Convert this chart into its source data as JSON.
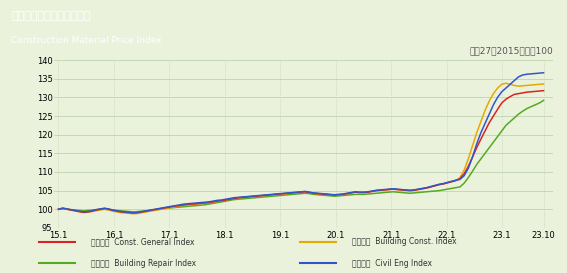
{
  "title_jp": "建設資材物価指数（東京）",
  "title_en": "Construction Material Price Index",
  "subtitle": "平成27（2015）年＝100",
  "bg_outer": "#eaf2dc",
  "bg_title": "#55bb33",
  "bg_plot": "#eaf2dc",
  "ylim": [
    95.0,
    140.0
  ],
  "yticks": [
    95.0,
    100.0,
    105.0,
    110.0,
    115.0,
    120.0,
    125.0,
    130.0,
    135.0,
    140.0
  ],
  "xtick_labels": [
    "15.1",
    "16.1",
    "17.1",
    "18.1",
    "19.1",
    "20.1",
    "21.1",
    "22.1",
    "23.1",
    "23.10"
  ],
  "xtick_positions": [
    0,
    12,
    24,
    36,
    48,
    60,
    72,
    84,
    96,
    105
  ],
  "xlim": [
    -1,
    107
  ],
  "series": {
    "general": {
      "label_jp": "建設総合",
      "label_en": "Const. General Index",
      "color": "#dd2222",
      "zorder": 4,
      "values": [
        100.0,
        100.3,
        100.1,
        99.8,
        99.6,
        99.4,
        99.2,
        99.3,
        99.5,
        99.8,
        100.0,
        100.2,
        100.0,
        99.7,
        99.5,
        99.3,
        99.2,
        99.1,
        99.0,
        99.1,
        99.3,
        99.5,
        99.7,
        99.9,
        100.1,
        100.3,
        100.5,
        100.7,
        100.9,
        101.0,
        101.2,
        101.3,
        101.4,
        101.5,
        101.6,
        101.7,
        101.8,
        102.0,
        102.2,
        102.3,
        102.5,
        102.7,
        102.9,
        103.1,
        103.2,
        103.3,
        103.4,
        103.5,
        103.6,
        103.7,
        103.8,
        103.9,
        104.0,
        104.1,
        104.2,
        104.3,
        104.4,
        104.5,
        104.6,
        104.7,
        104.5,
        104.3,
        104.2,
        104.1,
        104.0,
        103.9,
        103.8,
        103.9,
        104.0,
        104.2,
        104.4,
        104.6,
        104.5,
        104.5,
        104.6,
        104.8,
        105.0,
        105.1,
        105.2,
        105.3,
        105.4,
        105.3,
        105.2,
        105.1,
        105.0,
        105.1,
        105.3,
        105.5,
        105.7,
        106.0,
        106.3,
        106.6,
        106.8,
        107.1,
        107.4,
        107.7,
        108.2,
        109.5,
        111.5,
        114.0,
        116.5,
        118.8,
        121.0,
        123.2,
        125.0,
        126.8,
        128.5,
        129.5,
        130.2,
        130.8,
        131.0,
        131.2,
        131.4,
        131.5,
        131.6,
        131.7,
        131.8
      ]
    },
    "building": {
      "label_jp": "建築部門",
      "label_en": "Building Const. Index",
      "color": "#e8a800",
      "zorder": 3,
      "values": [
        100.0,
        100.2,
        100.0,
        99.8,
        99.6,
        99.3,
        99.1,
        99.2,
        99.4,
        99.6,
        99.8,
        100.0,
        99.8,
        99.5,
        99.3,
        99.1,
        99.0,
        98.9,
        98.8,
        98.9,
        99.1,
        99.3,
        99.5,
        99.7,
        99.9,
        100.1,
        100.3,
        100.5,
        100.7,
        100.9,
        101.1,
        101.2,
        101.3,
        101.4,
        101.5,
        101.6,
        101.7,
        101.9,
        102.1,
        102.3,
        102.5,
        102.7,
        102.9,
        103.1,
        103.2,
        103.3,
        103.4,
        103.5,
        103.6,
        103.7,
        103.8,
        103.9,
        104.0,
        104.1,
        104.2,
        104.3,
        104.4,
        104.5,
        104.6,
        104.7,
        104.5,
        104.3,
        104.2,
        104.1,
        104.0,
        103.9,
        103.8,
        103.9,
        104.0,
        104.2,
        104.4,
        104.6,
        104.5,
        104.5,
        104.6,
        104.8,
        105.0,
        105.1,
        105.2,
        105.3,
        105.4,
        105.3,
        105.2,
        105.1,
        105.0,
        105.1,
        105.3,
        105.5,
        105.7,
        106.0,
        106.3,
        106.6,
        106.8,
        107.1,
        107.4,
        107.7,
        108.5,
        110.5,
        113.5,
        117.0,
        120.5,
        123.5,
        126.5,
        129.0,
        131.0,
        132.5,
        133.5,
        133.8,
        133.5,
        133.2,
        133.0,
        133.1,
        133.2,
        133.3,
        133.4,
        133.5,
        133.6
      ]
    },
    "repair": {
      "label_jp": "建築補修",
      "label_en": "Building Repair Index",
      "color": "#55aa22",
      "zorder": 2,
      "values": [
        100.0,
        100.1,
        100.0,
        99.9,
        99.8,
        99.7,
        99.6,
        99.7,
        99.8,
        99.9,
        100.0,
        100.1,
        100.0,
        99.8,
        99.7,
        99.6,
        99.5,
        99.4,
        99.3,
        99.4,
        99.5,
        99.6,
        99.7,
        99.9,
        100.0,
        100.2,
        100.3,
        100.4,
        100.5,
        100.6,
        100.7,
        100.8,
        100.9,
        101.0,
        101.1,
        101.2,
        101.4,
        101.6,
        101.8,
        102.0,
        102.2,
        102.4,
        102.6,
        102.7,
        102.8,
        102.9,
        103.0,
        103.1,
        103.2,
        103.3,
        103.4,
        103.5,
        103.6,
        103.7,
        103.8,
        103.9,
        104.0,
        104.1,
        104.2,
        104.3,
        104.2,
        104.0,
        103.9,
        103.8,
        103.7,
        103.6,
        103.5,
        103.6,
        103.7,
        103.8,
        103.9,
        104.0,
        104.0,
        104.0,
        104.1,
        104.2,
        104.3,
        104.4,
        104.5,
        104.6,
        104.7,
        104.6,
        104.5,
        104.4,
        104.3,
        104.4,
        104.5,
        104.6,
        104.7,
        104.8,
        104.9,
        105.0,
        105.2,
        105.4,
        105.6,
        105.8,
        106.0,
        107.0,
        108.5,
        110.2,
        112.0,
        113.5,
        115.0,
        116.5,
        118.0,
        119.5,
        121.0,
        122.5,
        123.5,
        124.5,
        125.5,
        126.3,
        127.0,
        127.5,
        128.0,
        128.5,
        129.2
      ]
    },
    "civil": {
      "label_jp": "土木部門",
      "label_en": "Civil Eng Index",
      "color": "#3355cc",
      "zorder": 5,
      "values": [
        100.0,
        100.3,
        100.1,
        99.9,
        99.7,
        99.5,
        99.3,
        99.4,
        99.6,
        99.9,
        100.1,
        100.3,
        100.1,
        99.8,
        99.6,
        99.4,
        99.3,
        99.2,
        99.1,
        99.2,
        99.4,
        99.6,
        99.8,
        100.0,
        100.2,
        100.4,
        100.6,
        100.8,
        101.0,
        101.2,
        101.4,
        101.5,
        101.6,
        101.7,
        101.8,
        101.9,
        102.0,
        102.2,
        102.4,
        102.5,
        102.7,
        102.9,
        103.1,
        103.2,
        103.3,
        103.4,
        103.5,
        103.6,
        103.7,
        103.8,
        103.9,
        104.0,
        104.1,
        104.2,
        104.3,
        104.4,
        104.5,
        104.6,
        104.7,
        104.8,
        104.6,
        104.4,
        104.3,
        104.2,
        104.1,
        104.0,
        103.9,
        104.0,
        104.1,
        104.3,
        104.5,
        104.7,
        104.6,
        104.6,
        104.7,
        104.9,
        105.1,
        105.2,
        105.3,
        105.4,
        105.5,
        105.4,
        105.3,
        105.2,
        105.1,
        105.2,
        105.4,
        105.6,
        105.8,
        106.1,
        106.4,
        106.7,
        106.9,
        107.2,
        107.5,
        107.8,
        108.0,
        109.0,
        111.0,
        114.0,
        117.5,
        120.5,
        123.0,
        125.5,
        128.0,
        130.0,
        131.5,
        132.5,
        133.5,
        134.5,
        135.5,
        136.0,
        136.2,
        136.3,
        136.4,
        136.5,
        136.6
      ]
    }
  }
}
